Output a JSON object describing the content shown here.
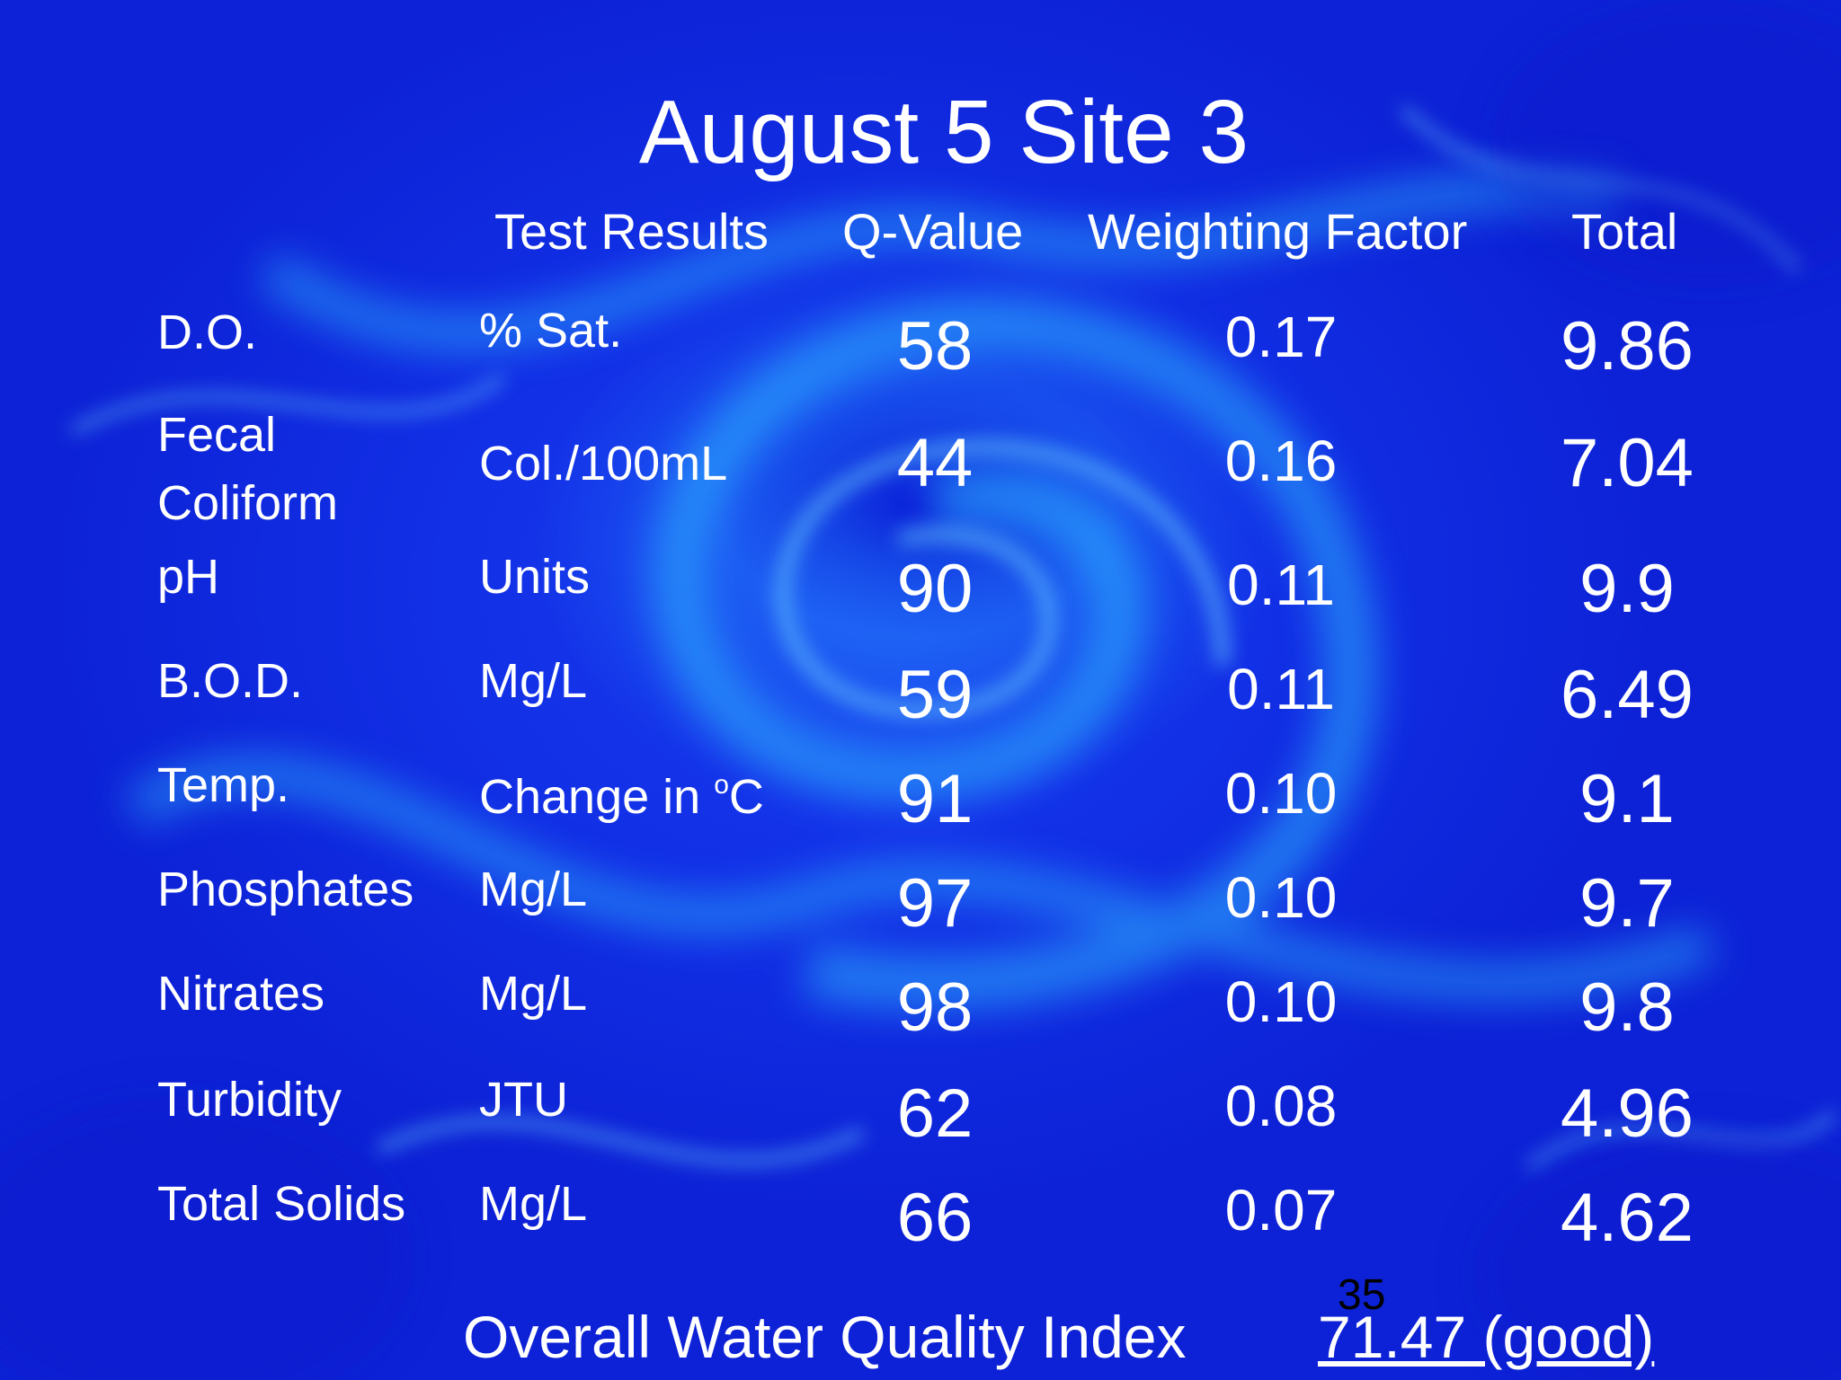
{
  "title": "August 5 Site 3",
  "columns": {
    "test_results": "Test Results",
    "q_value": "Q-Value",
    "weighting_factor": "Weighting Factor",
    "total": "Total"
  },
  "rows": [
    {
      "name": "D.O.",
      "unit": "% Sat.",
      "q": "58",
      "w": "0.17",
      "total": "9.86"
    },
    {
      "name_line1": "Fecal",
      "name_line2": "Coliform",
      "unit": "Col./100mL",
      "q": "44",
      "w": "0.16",
      "total": "7.04"
    },
    {
      "name": "pH",
      "unit": "Units",
      "q": "90",
      "w": "0.11",
      "total": "9.9"
    },
    {
      "name": "B.O.D.",
      "unit": "Mg/L",
      "q": "59",
      "w": "0.11",
      "total": "6.49"
    },
    {
      "name": "Temp.",
      "unit_prefix": "Change in ",
      "unit_sup": "o",
      "unit_suffix": "C",
      "q": "91",
      "w": "0.10",
      "total": "9.1"
    },
    {
      "name": "Phosphates",
      "unit": "Mg/L",
      "q": "97",
      "w": "0.10",
      "total": "9.7"
    },
    {
      "name": "Nitrates",
      "unit": "Mg/L",
      "q": "98",
      "w": "0.10",
      "total": "9.8"
    },
    {
      "name": "Turbidity",
      "unit": "JTU",
      "q": "62",
      "w": "0.08",
      "total": "4.96"
    },
    {
      "name": "Total Solids",
      "unit": "Mg/L",
      "q": "66",
      "w": "0.07",
      "total": "4.62"
    }
  ],
  "footer": {
    "label": "Overall Water Quality Index",
    "value": "71.47 (good)"
  },
  "slide_number": "35",
  "colors": {
    "background": "#0f26dc",
    "swirl": "#28aaff",
    "text": "#ffffff",
    "slide_number": "#000000"
  }
}
